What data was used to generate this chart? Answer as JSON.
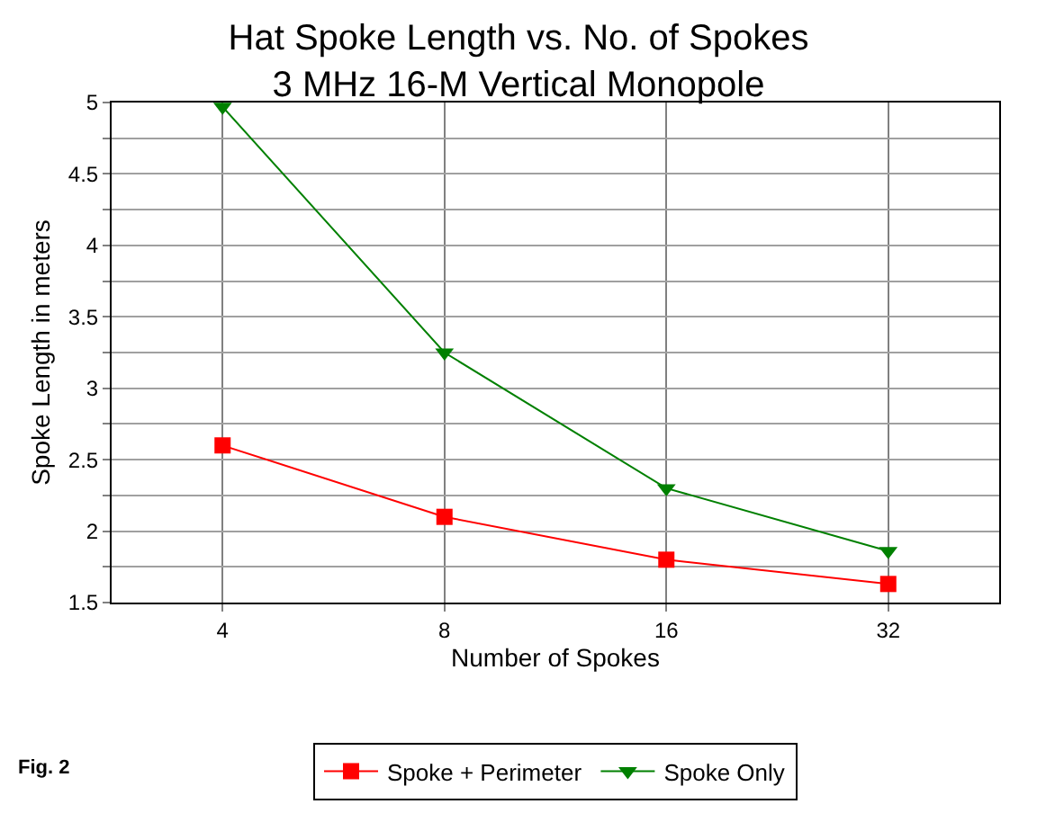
{
  "chart_data": {
    "type": "line",
    "title": "Hat Spoke Length vs. No. of Spokes",
    "subtitle": "3 MHz 16-M Vertical Monopole",
    "xlabel": "Number of Spokes",
    "ylabel": "Spoke Length in meters",
    "categories": [
      "4",
      "8",
      "16",
      "32"
    ],
    "series": [
      {
        "name": "Spoke + Perimeter",
        "color": "#ff0000",
        "marker": "square",
        "values": [
          2.6,
          2.1,
          1.8,
          1.63
        ]
      },
      {
        "name": "Spoke Only",
        "color": "#008000",
        "marker": "triangle-down",
        "values": [
          4.97,
          3.25,
          2.3,
          1.86
        ]
      }
    ],
    "ylim": [
      1.5,
      5
    ],
    "yticks": [
      1.5,
      {
        "value": 1.75,
        "label": null
      },
      2,
      {
        "value": 2.25,
        "label": null
      },
      2.5,
      {
        "value": 2.75,
        "label": null
      },
      3,
      {
        "value": 3.25,
        "label": null
      },
      3.5,
      {
        "value": 3.75,
        "label": null
      },
      4,
      {
        "value": 4.25,
        "label": null
      },
      4.5,
      {
        "value": 4.75,
        "label": null
      },
      5
    ],
    "grid": true,
    "legend": "bottom",
    "line_style": "solid",
    "annotations": [
      "Fig. 2"
    ]
  }
}
